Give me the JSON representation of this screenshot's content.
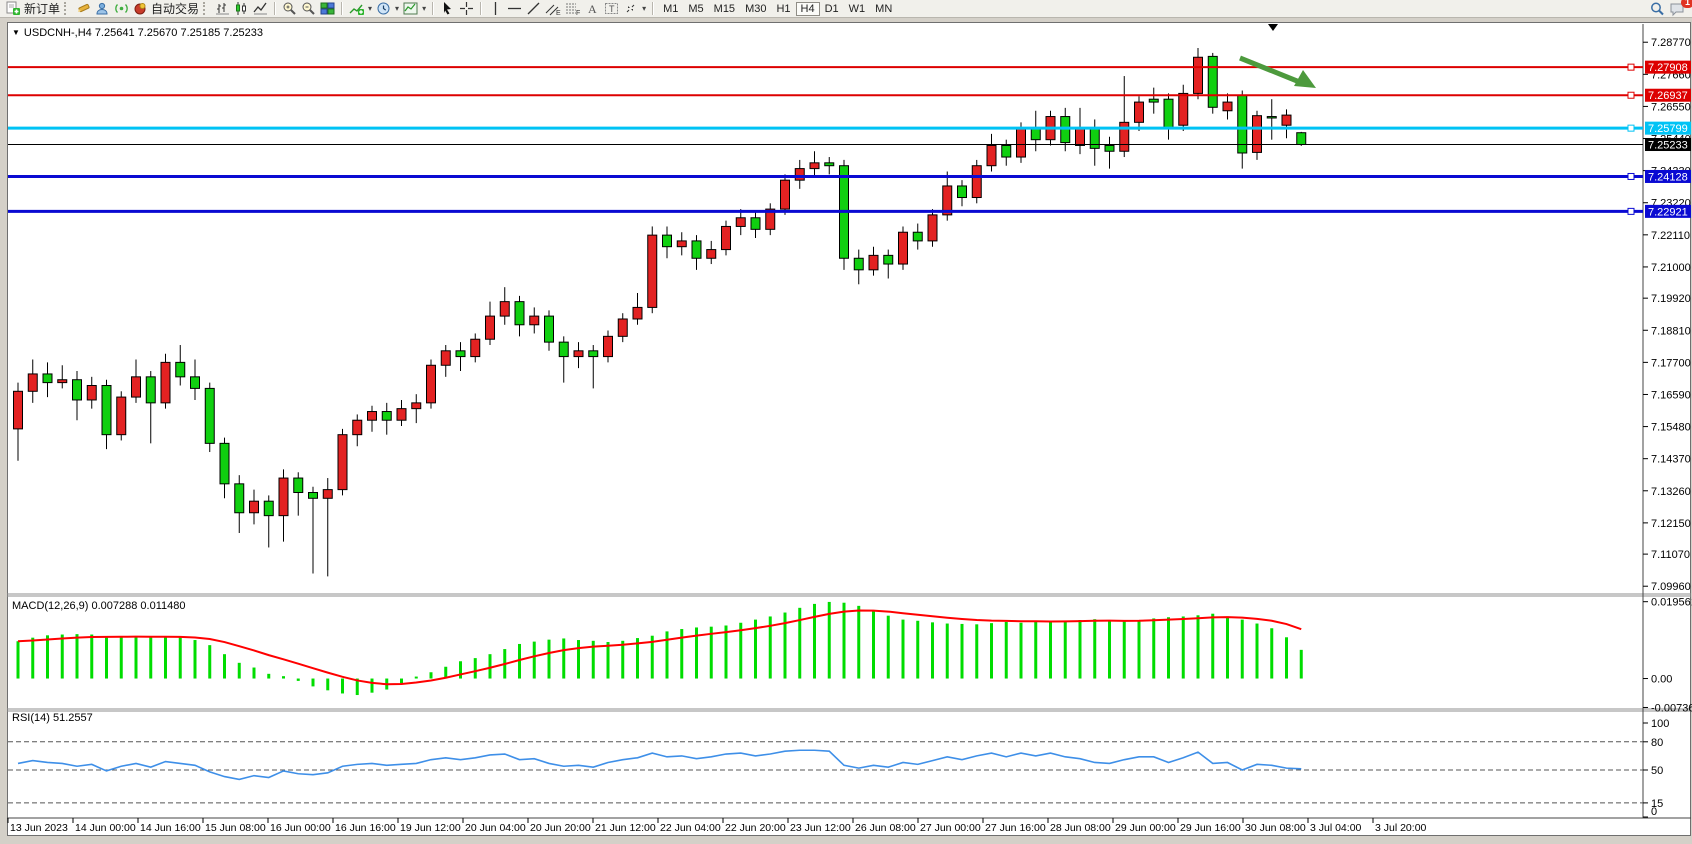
{
  "toolbar": {
    "new_order_label": "新订单",
    "auto_trading_label": "自动交易",
    "timeframes": [
      "M1",
      "M5",
      "M15",
      "M30",
      "H1",
      "H4",
      "D1",
      "W1",
      "MN"
    ],
    "active_timeframe": "H4",
    "notification_badge": "1",
    "icons": [
      "new-order-icon",
      "crayon-icon",
      "profile-icon",
      "signal-icon",
      "auto-trading-icon",
      "bar-chart-icon",
      "candle-chart-icon",
      "line-chart-icon",
      "zoom-in-icon",
      "zoom-out-icon",
      "tile-windows-icon",
      "indicators-icon",
      "period-clock-icon",
      "template-icon",
      "cursor-icon",
      "crosshair-icon",
      "vertical-line-icon",
      "horizontal-line-icon",
      "trendline-icon",
      "equidistant-channel-icon",
      "fibonacci-icon",
      "text-icon",
      "text-label-icon",
      "arrow-objects-icon",
      "search-icon",
      "chat-icon"
    ]
  },
  "chart": {
    "title": "USDCNH-,H4 7.25641 7.25670 7.25185 7.25233",
    "macd_label": "MACD(12,26,9) 0.007288 0.011480",
    "rsi_label": "RSI(14) 51.2557"
  },
  "chart_data": [
    {
      "type": "candlestick",
      "symbol": "USDCNH-",
      "timeframe": "H4",
      "title": "USDCNH-,H4 7.25641 7.25670 7.25185 7.25233",
      "last_bar": {
        "open": "7.25641",
        "high": "7.25670",
        "low": "7.25185",
        "close": "7.25233"
      },
      "up_color": "#e32222",
      "down_color": "#10d010",
      "ylim": [
        7.0976,
        7.294
      ],
      "price_ticks": [
        "7.28770",
        "7.27660",
        "7.26550",
        "7.25440",
        "7.24330",
        "7.23220",
        "7.22110",
        "7.21000",
        "7.19920",
        "7.18810",
        "7.17700",
        "7.16590",
        "7.15480",
        "7.14370",
        "7.13260",
        "7.12150",
        "7.11070",
        "7.09960"
      ],
      "hlines": [
        {
          "label": "7.27908",
          "value": 7.27908,
          "color": "#dd0000",
          "width": 2,
          "handle": true
        },
        {
          "label": "7.26937",
          "value": 7.26937,
          "color": "#dd0000",
          "width": 2,
          "handle": true
        },
        {
          "label": "7.25799",
          "value": 7.25799,
          "color": "#00c3f5",
          "width": 3,
          "handle": true
        },
        {
          "label": "7.25233",
          "value": 7.25233,
          "color": "#000000",
          "width": 1,
          "handle": false
        },
        {
          "label": "7.24128",
          "value": 7.24128,
          "color": "#0a0ad2",
          "width": 3,
          "handle": true
        },
        {
          "label": "7.22921",
          "value": 7.22921,
          "color": "#0a0ad2",
          "width": 3,
          "handle": true
        }
      ],
      "x_labels": [
        "13 Jun 2023",
        "14 Jun 00:00",
        "14 Jun 16:00",
        "15 Jun 08:00",
        "16 Jun 00:00",
        "16 Jun 16:00",
        "19 Jun 12:00",
        "20 Jun 04:00",
        "20 Jun 20:00",
        "21 Jun 12:00",
        "22 Jun 04:00",
        "22 Jun 20:00",
        "23 Jun 12:00",
        "26 Jun 08:00",
        "27 Jun 00:00",
        "27 Jun 16:00",
        "28 Jun 08:00",
        "29 Jun 00:00",
        "29 Jun 16:00",
        "30 Jun 08:00",
        "3 Jul 04:00",
        "3 Jul 20:00"
      ],
      "annotation_arrow": {
        "color": "#4d9a3d",
        "from": [
          1240,
          58
        ],
        "to": [
          1316,
          88
        ]
      },
      "candles": [
        [
          7.154,
          7.17,
          7.143,
          7.167
        ],
        [
          7.167,
          7.178,
          7.163,
          7.173
        ],
        [
          7.173,
          7.177,
          7.165,
          7.17
        ],
        [
          7.17,
          7.176,
          7.168,
          7.171
        ],
        [
          7.171,
          7.174,
          7.157,
          7.164
        ],
        [
          7.164,
          7.172,
          7.161,
          7.169
        ],
        [
          7.169,
          7.171,
          7.147,
          7.152
        ],
        [
          7.152,
          7.167,
          7.15,
          7.165
        ],
        [
          7.165,
          7.178,
          7.163,
          7.172
        ],
        [
          7.172,
          7.174,
          7.149,
          7.163
        ],
        [
          7.163,
          7.18,
          7.161,
          7.177
        ],
        [
          7.177,
          7.183,
          7.169,
          7.172
        ],
        [
          7.172,
          7.178,
          7.164,
          7.168
        ],
        [
          7.168,
          7.17,
          7.146,
          7.149
        ],
        [
          7.149,
          7.151,
          7.13,
          7.135
        ],
        [
          7.135,
          7.138,
          7.118,
          7.125
        ],
        [
          7.125,
          7.133,
          7.121,
          7.129
        ],
        [
          7.129,
          7.131,
          7.113,
          7.124
        ],
        [
          7.124,
          7.14,
          7.115,
          7.137
        ],
        [
          7.137,
          7.139,
          7.124,
          7.132
        ],
        [
          7.132,
          7.134,
          7.104,
          7.13
        ],
        [
          7.13,
          7.137,
          7.103,
          7.133
        ],
        [
          7.133,
          7.154,
          7.131,
          7.152
        ],
        [
          7.152,
          7.159,
          7.148,
          7.157
        ],
        [
          7.157,
          7.162,
          7.153,
          7.16
        ],
        [
          7.16,
          7.163,
          7.152,
          7.157
        ],
        [
          7.157,
          7.164,
          7.155,
          7.161
        ],
        [
          7.161,
          7.166,
          7.156,
          7.163
        ],
        [
          7.163,
          7.178,
          7.161,
          7.176
        ],
        [
          7.176,
          7.183,
          7.172,
          7.181
        ],
        [
          7.181,
          7.184,
          7.174,
          7.179
        ],
        [
          7.179,
          7.187,
          7.177,
          7.185
        ],
        [
          7.185,
          7.198,
          7.183,
          7.193
        ],
        [
          7.193,
          7.203,
          7.19,
          7.198
        ],
        [
          7.198,
          7.2,
          7.186,
          7.19
        ],
        [
          7.19,
          7.196,
          7.187,
          7.193
        ],
        [
          7.193,
          7.195,
          7.181,
          7.184
        ],
        [
          7.184,
          7.186,
          7.17,
          7.179
        ],
        [
          7.179,
          7.184,
          7.175,
          7.181
        ],
        [
          7.181,
          7.183,
          7.168,
          7.179
        ],
        [
          7.179,
          7.188,
          7.177,
          7.186
        ],
        [
          7.186,
          7.194,
          7.184,
          7.192
        ],
        [
          7.192,
          7.201,
          7.19,
          7.196
        ],
        [
          7.196,
          7.224,
          7.194,
          7.221
        ],
        [
          7.221,
          7.224,
          7.213,
          7.217
        ],
        [
          7.217,
          7.222,
          7.214,
          7.219
        ],
        [
          7.219,
          7.221,
          7.209,
          7.213
        ],
        [
          7.213,
          7.219,
          7.211,
          7.216
        ],
        [
          7.216,
          7.226,
          7.214,
          7.224
        ],
        [
          7.224,
          7.23,
          7.221,
          7.227
        ],
        [
          7.227,
          7.229,
          7.22,
          7.223
        ],
        [
          7.223,
          7.232,
          7.221,
          7.23
        ],
        [
          7.23,
          7.242,
          7.228,
          7.24
        ],
        [
          7.24,
          7.247,
          7.237,
          7.244
        ],
        [
          7.244,
          7.25,
          7.241,
          7.246
        ],
        [
          7.246,
          7.248,
          7.242,
          7.245
        ],
        [
          7.245,
          7.247,
          7.209,
          7.213
        ],
        [
          7.213,
          7.216,
          7.204,
          7.209
        ],
        [
          7.209,
          7.217,
          7.207,
          7.214
        ],
        [
          7.214,
          7.216,
          7.206,
          7.211
        ],
        [
          7.211,
          7.224,
          7.209,
          7.222
        ],
        [
          7.222,
          7.225,
          7.216,
          7.219
        ],
        [
          7.219,
          7.23,
          7.217,
          7.228
        ],
        [
          7.228,
          7.243,
          7.226,
          7.238
        ],
        [
          7.238,
          7.24,
          7.231,
          7.234
        ],
        [
          7.234,
          7.247,
          7.232,
          7.245
        ],
        [
          7.245,
          7.256,
          7.243,
          7.252
        ],
        [
          7.252,
          7.254,
          7.245,
          7.248
        ],
        [
          7.248,
          7.26,
          7.246,
          7.258
        ],
        [
          7.258,
          7.264,
          7.25,
          7.254
        ],
        [
          7.254,
          7.264,
          7.252,
          7.262
        ],
        [
          7.262,
          7.265,
          7.25,
          7.253
        ],
        [
          7.252,
          7.265,
          7.249,
          7.258
        ],
        [
          7.258,
          7.261,
          7.245,
          7.251
        ],
        [
          7.252,
          7.255,
          7.244,
          7.25
        ],
        [
          7.25,
          7.276,
          7.248,
          7.26
        ],
        [
          7.26,
          7.269,
          7.257,
          7.267
        ],
        [
          7.268,
          7.272,
          7.263,
          7.267
        ],
        [
          7.268,
          7.27,
          7.254,
          7.258
        ],
        [
          7.259,
          7.273,
          7.257,
          7.27
        ],
        [
          7.27,
          7.2857,
          7.268,
          7.2825
        ],
        [
          7.2828,
          7.284,
          7.263,
          7.2652
        ],
        [
          7.264,
          7.27,
          7.261,
          7.267
        ],
        [
          7.2694,
          7.271,
          7.244,
          7.2494
        ],
        [
          7.2496,
          7.264,
          7.247,
          7.2623
        ],
        [
          7.262,
          7.268,
          7.254,
          7.2615
        ],
        [
          7.259,
          7.2645,
          7.2545,
          7.2625
        ],
        [
          7.25641,
          7.2567,
          7.25185,
          7.25233
        ]
      ]
    },
    {
      "type": "bar",
      "name": "MACD",
      "params": [
        12,
        26,
        9
      ],
      "label": "MACD(12,26,9) 0.007288 0.011480",
      "current_main": "0.007288",
      "current_signal": "0.011480",
      "bar_color": "#00dd00",
      "signal_color": "#ff0000",
      "signal_period": 9,
      "ylim": [
        -0.0075,
        0.0205
      ],
      "axis_labels": [
        "0.019561",
        "0.00",
        "-0.007367"
      ],
      "axis_values": [
        0.019561,
        0,
        -0.007367
      ],
      "values": [
        0.0095,
        0.0104,
        0.011,
        0.0112,
        0.0113,
        0.0112,
        0.0108,
        0.0107,
        0.0108,
        0.0105,
        0.0107,
        0.0105,
        0.0098,
        0.0085,
        0.0062,
        0.004,
        0.0028,
        0.0012,
        0.0006,
        -0.0006,
        -0.002,
        -0.003,
        -0.0038,
        -0.0042,
        -0.0036,
        -0.0028,
        -0.0012,
        0.0005,
        0.0016,
        0.003,
        0.0044,
        0.0052,
        0.0062,
        0.0075,
        0.0088,
        0.0094,
        0.0099,
        0.0102,
        0.0098,
        0.0096,
        0.0093,
        0.0096,
        0.0103,
        0.0109,
        0.012,
        0.0126,
        0.013,
        0.0132,
        0.0135,
        0.0142,
        0.015,
        0.0158,
        0.0168,
        0.018,
        0.019,
        0.0195,
        0.0193,
        0.0185,
        0.0172,
        0.016,
        0.015,
        0.0147,
        0.0143,
        0.014,
        0.0139,
        0.0138,
        0.0141,
        0.0144,
        0.0142,
        0.0146,
        0.0143,
        0.0147,
        0.0149,
        0.0151,
        0.0148,
        0.0145,
        0.0148,
        0.0153,
        0.0156,
        0.0158,
        0.0161,
        0.0165,
        0.0158,
        0.015,
        0.014,
        0.0128,
        0.0105,
        0.0073
      ]
    },
    {
      "type": "line",
      "name": "RSI",
      "params": [
        14
      ],
      "label": "RSI(14) 51.2557",
      "current_value": "51.2557",
      "line_color": "#3e8fe8",
      "levels": [
        80,
        50,
        15
      ],
      "axis_labels": [
        "100",
        "80",
        "50",
        "15",
        "0"
      ],
      "axis_values": [
        100,
        80,
        50,
        15,
        0
      ],
      "ylim": [
        0,
        100
      ],
      "values": [
        57,
        60,
        58,
        57,
        54,
        56,
        49,
        54,
        57,
        53,
        59,
        57,
        55,
        48,
        43,
        40,
        44,
        42,
        49,
        46,
        45,
        47,
        54,
        56,
        57,
        55,
        56,
        57,
        61,
        63,
        61,
        63,
        66,
        67,
        61,
        62,
        57,
        54,
        55,
        53,
        58,
        61,
        63,
        68,
        64,
        65,
        62,
        64,
        67,
        68,
        65,
        67,
        70,
        71,
        71,
        70,
        55,
        52,
        55,
        53,
        58,
        56,
        60,
        64,
        61,
        65,
        68,
        64,
        68,
        65,
        68,
        64,
        62,
        58,
        57,
        61,
        64,
        64,
        58,
        63,
        69,
        57,
        58,
        50,
        56,
        55,
        52,
        51.26
      ]
    }
  ]
}
